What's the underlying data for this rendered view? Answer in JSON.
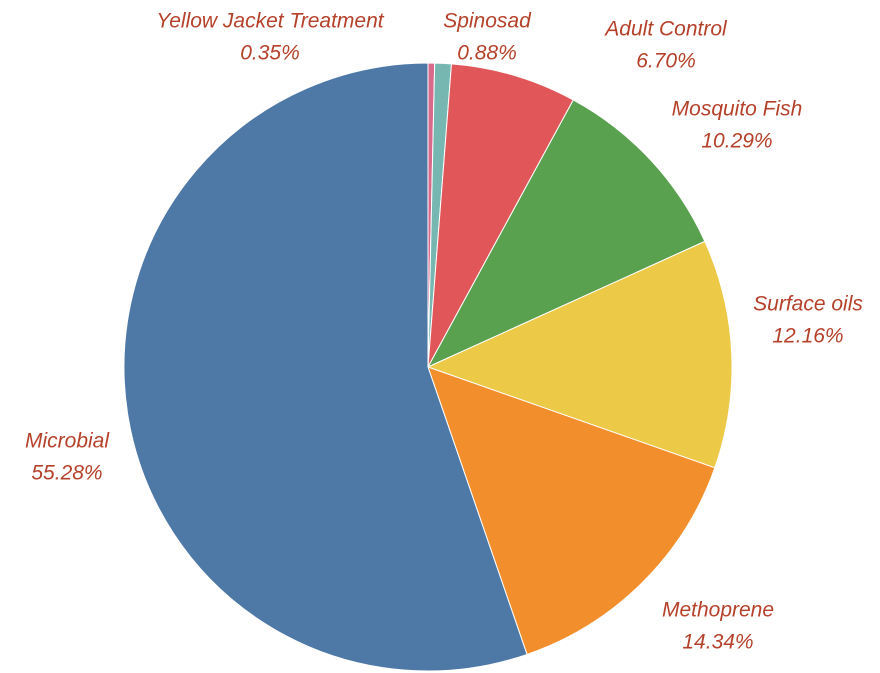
{
  "chart_data": {
    "type": "pie",
    "title": "",
    "label_color": "#b5412a",
    "slices": [
      {
        "label": "Yellow Jacket Treatment",
        "value": 0.35,
        "value_label": "0.35%",
        "color": "#d86a8c"
      },
      {
        "label": "Spinosad",
        "value": 0.88,
        "value_label": "0.88%",
        "color": "#76b7b2"
      },
      {
        "label": "Adult Control",
        "value": 6.7,
        "value_label": "6.70%",
        "color": "#e15759"
      },
      {
        "label": "Mosquito Fish",
        "value": 10.29,
        "value_label": "10.29%",
        "color": "#59a14f"
      },
      {
        "label": "Surface oils",
        "value": 12.16,
        "value_label": "12.16%",
        "color": "#edc948"
      },
      {
        "label": "Methoprene",
        "value": 14.34,
        "value_label": "14.34%",
        "color": "#f28e2b"
      },
      {
        "label": "Microbial",
        "value": 55.28,
        "value_label": "55.28%",
        "color": "#4e79a7"
      }
    ]
  }
}
